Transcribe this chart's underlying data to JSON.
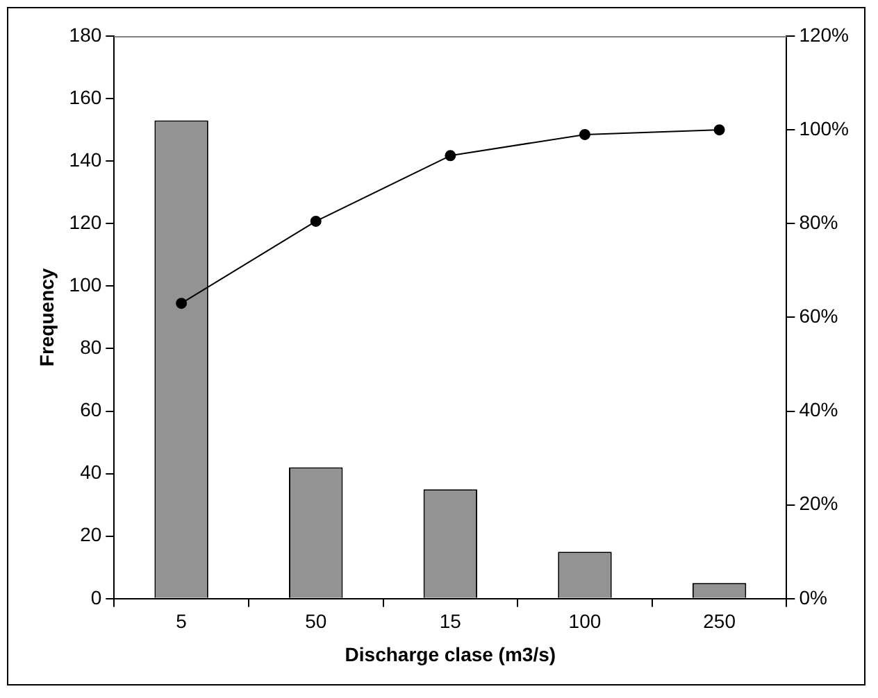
{
  "chart_data": {
    "type": "bar",
    "xlabel": "Discharge clase (m3/s)",
    "ylabel": "Frequency",
    "categories": [
      "5",
      "50",
      "15",
      "100",
      "250"
    ],
    "series": [
      {
        "color": "#939393",
        "values": [
          153,
          42,
          35,
          15,
          5
        ]
      },
      {
        "type": "line",
        "axis": "y2",
        "color": "#000000",
        "marker": "circle",
        "line_style": "solid",
        "values": [
          63,
          80.5,
          94.5,
          99,
          100
        ]
      }
    ],
    "ylim": [
      0,
      180
    ],
    "yticks": [
      0,
      20,
      40,
      60,
      80,
      100,
      120,
      140,
      160,
      180
    ],
    "y2lim": [
      0,
      120
    ],
    "y2ticks": [
      {
        "value": 0,
        "label": "0%"
      },
      {
        "value": 20,
        "label": "20%"
      },
      {
        "value": 40,
        "label": "40%"
      },
      {
        "value": 60,
        "label": "60%"
      },
      {
        "value": 80,
        "label": "80%"
      },
      {
        "value": 100,
        "label": "100%"
      },
      {
        "value": 120,
        "label": "120%"
      }
    ],
    "grid": false,
    "legend": false
  }
}
